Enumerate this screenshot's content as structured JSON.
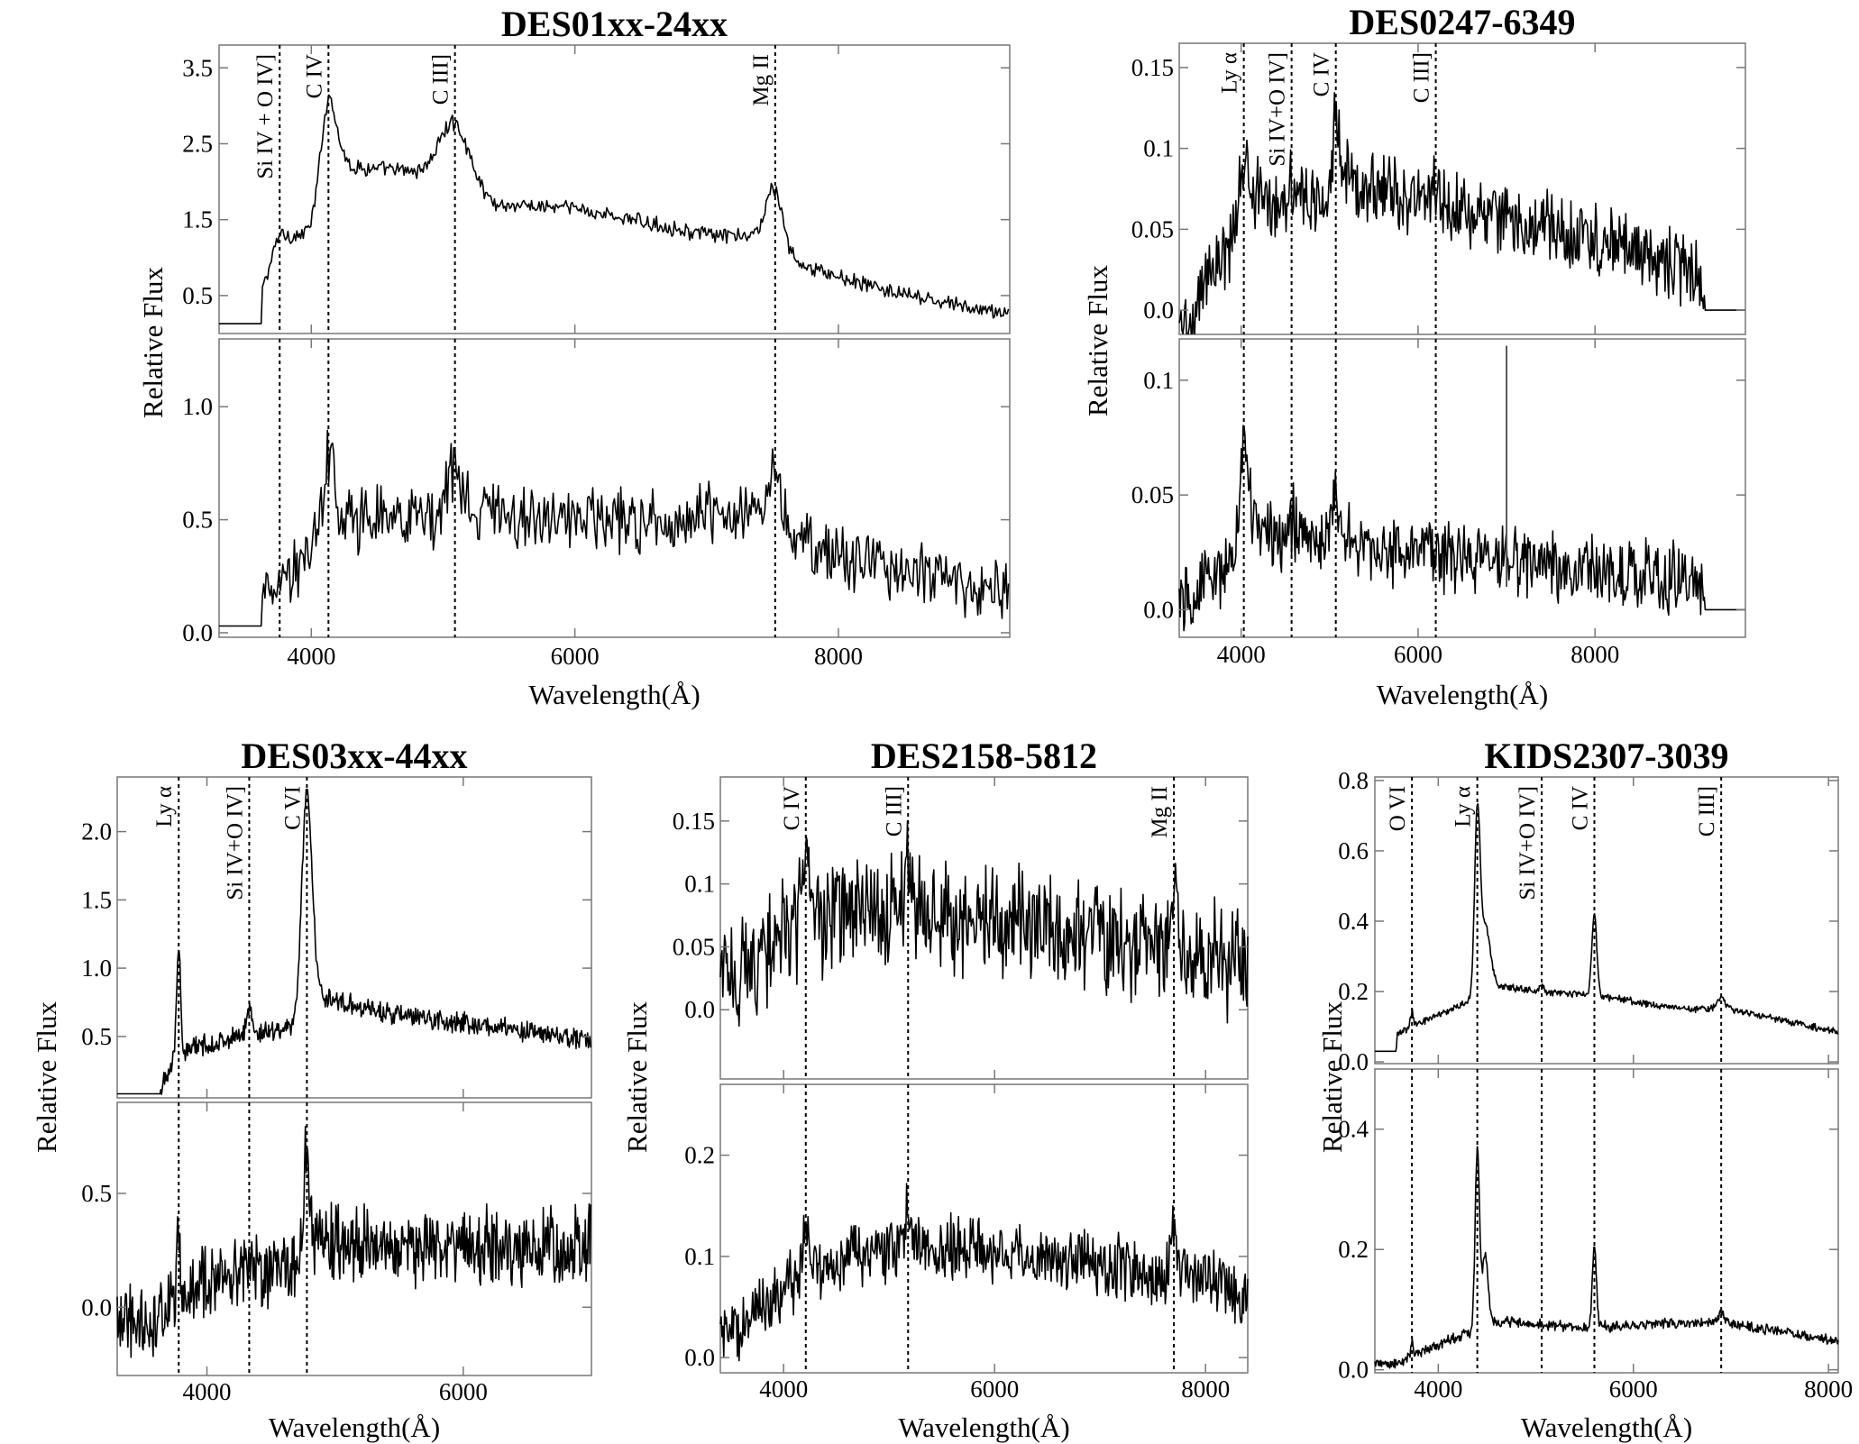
{
  "chart_data": [
    {
      "type": "line",
      "title": "DES01xx-24xx",
      "xlabel": "Wavelength",
      "xunit": "(Å)",
      "ylabel": "Relative Flux",
      "xlim": [
        3300,
        9300
      ],
      "x_ticks": [
        "4000",
        "6000",
        "8000"
      ],
      "x_tick_values": [
        4000,
        6000,
        8000
      ],
      "grid": false,
      "emission_lines": [
        {
          "name": "Si IV + O IV]",
          "x": 3760
        },
        {
          "name": "C IV",
          "x": 4130
        },
        {
          "name": "C III]",
          "x": 5090
        },
        {
          "name": "Mg II",
          "x": 7520
        }
      ],
      "panels": [
        {
          "position": "top",
          "ylim": [
            0.0,
            3.8
          ],
          "y_ticks": [
            "0.5",
            "1.5",
            "2.5",
            "3.5"
          ],
          "y_tick_values": [
            0.5,
            1.5,
            2.5,
            3.5
          ],
          "continuum": [
            [
              3300,
              0.13
            ],
            [
              3620,
              0.13
            ],
            [
              3630,
              0.6
            ],
            [
              3760,
              1.2
            ],
            [
              4000,
              1.35
            ],
            [
              4250,
              2.2
            ],
            [
              5000,
              2.1
            ],
            [
              5400,
              1.7
            ],
            [
              6000,
              1.65
            ],
            [
              7000,
              1.3
            ],
            [
              7500,
              1.25
            ],
            [
              7600,
              0.95
            ],
            [
              8500,
              0.5
            ],
            [
              9200,
              0.28
            ]
          ],
          "peaks": [
            [
              4130,
              1.3
            ],
            [
              5090,
              0.75
            ],
            [
              7520,
              0.7
            ],
            [
              3760,
              0.12
            ]
          ],
          "widths": [
            60,
            110,
            70,
            50
          ],
          "noise": 0.08,
          "flat_before": 3620
        },
        {
          "position": "bottom",
          "ylim": [
            -0.02,
            1.3
          ],
          "y_ticks": [
            "0.0",
            "0.5",
            "1.0"
          ],
          "y_tick_values": [
            0.0,
            0.5,
            1.0
          ],
          "continuum": [
            [
              3300,
              0.03
            ],
            [
              3620,
              0.03
            ],
            [
              3630,
              0.18
            ],
            [
              4000,
              0.35
            ],
            [
              4200,
              0.5
            ],
            [
              5500,
              0.52
            ],
            [
              6500,
              0.5
            ],
            [
              7500,
              0.55
            ],
            [
              7650,
              0.4
            ],
            [
              8500,
              0.28
            ],
            [
              9200,
              0.18
            ]
          ],
          "peaks": [
            [
              4130,
              0.35
            ],
            [
              5090,
              0.22
            ],
            [
              7520,
              0.15
            ]
          ],
          "widths": [
            45,
            60,
            50
          ],
          "noise": 0.11,
          "flat_before": 3620
        }
      ]
    },
    {
      "type": "line",
      "title": "DES0247-6349",
      "xlabel": "Wavelength",
      "xunit": "(Å)",
      "ylabel": "Relative Flux",
      "xlim": [
        3300,
        9700
      ],
      "x_ticks": [
        "4000",
        "6000",
        "8000"
      ],
      "x_tick_values": [
        4000,
        6000,
        8000
      ],
      "grid": false,
      "emission_lines": [
        {
          "name": "Ly α",
          "x": 4030
        },
        {
          "name": "Si IV+O IV]",
          "x": 4570
        },
        {
          "name": "C IV",
          "x": 5070
        },
        {
          "name": "C III]",
          "x": 6200
        }
      ],
      "panels": [
        {
          "position": "top",
          "ylim": [
            -0.015,
            0.165
          ],
          "y_ticks": [
            "0.0",
            "0.05",
            "0.1",
            "0.15"
          ],
          "y_tick_values": [
            0.0,
            0.05,
            0.1,
            0.15
          ],
          "continuum": [
            [
              3500,
              -0.01
            ],
            [
              3560,
              0.02
            ],
            [
              3900,
              0.04
            ],
            [
              4100,
              0.07
            ],
            [
              5000,
              0.065
            ],
            [
              5200,
              0.08
            ],
            [
              6200,
              0.065
            ],
            [
              7500,
              0.05
            ],
            [
              8500,
              0.035
            ],
            [
              9230,
              0.02
            ],
            [
              9240,
              0.0
            ],
            [
              9700,
              0.0
            ]
          ],
          "peaks": [
            [
              4030,
              0.035
            ],
            [
              4570,
              0.015
            ],
            [
              5070,
              0.045
            ],
            [
              6200,
              0.012
            ]
          ],
          "widths": [
            50,
            40,
            45,
            60
          ],
          "noise": 0.018,
          "flat_after": 9230
        },
        {
          "position": "bottom",
          "ylim": [
            -0.012,
            0.118
          ],
          "y_ticks": [
            "0.0",
            "0.05",
            "0.1"
          ],
          "y_tick_values": [
            0.0,
            0.05,
            0.1
          ],
          "continuum": [
            [
              3500,
              0.005
            ],
            [
              3600,
              0.015
            ],
            [
              3900,
              0.02
            ],
            [
              4100,
              0.035
            ],
            [
              5000,
              0.03
            ],
            [
              6000,
              0.025
            ],
            [
              7500,
              0.02
            ],
            [
              8500,
              0.015
            ],
            [
              9230,
              0.012
            ],
            [
              9240,
              0.0
            ],
            [
              9700,
              0.0
            ]
          ],
          "peaks": [
            [
              4030,
              0.045
            ],
            [
              5070,
              0.02
            ],
            [
              4570,
              0.008
            ]
          ],
          "widths": [
            50,
            45,
            40
          ],
          "noise": 0.012,
          "flat_after": 9230,
          "spike": {
            "x": 7000,
            "y": 0.115
          }
        }
      ]
    },
    {
      "type": "line",
      "title": "DES03xx-44xx",
      "xlabel": "Wavelength",
      "xunit": "(Å)",
      "ylabel": "Relative Flux",
      "xlim": [
        3300,
        7000
      ],
      "x_ticks": [
        "4000",
        "6000"
      ],
      "x_tick_values": [
        4000,
        6000
      ],
      "grid": false,
      "emission_lines": [
        {
          "name": "Ly α",
          "x": 3780
        },
        {
          "name": "Si IV+O IV]",
          "x": 4330
        },
        {
          "name": "C VI",
          "x": 4780
        }
      ],
      "panels": [
        {
          "position": "top",
          "ylim": [
            0.05,
            2.4
          ],
          "y_ticks": [
            "0.5",
            "1.0",
            "1.5",
            "2.0"
          ],
          "y_tick_values": [
            0.5,
            1.0,
            1.5,
            2.0
          ],
          "continuum": [
            [
              3300,
              0.08
            ],
            [
              3640,
              0.08
            ],
            [
              3660,
              0.2
            ],
            [
              3760,
              0.35
            ],
            [
              3900,
              0.42
            ],
            [
              4700,
              0.58
            ],
            [
              4850,
              0.8
            ],
            [
              5500,
              0.65
            ],
            [
              6000,
              0.6
            ],
            [
              6900,
              0.48
            ]
          ],
          "peaks": [
            [
              3780,
              0.8
            ],
            [
              4780,
              1.6
            ],
            [
              4330,
              0.2
            ]
          ],
          "widths": [
            15,
            40,
            25
          ],
          "noise": 0.06,
          "flat_before": 3640
        },
        {
          "position": "bottom",
          "ylim": [
            -0.3,
            0.9
          ],
          "y_ticks": [
            "0.0",
            "0.5"
          ],
          "y_tick_values": [
            0.0,
            0.5
          ],
          "continuum": [
            [
              3600,
              -0.05
            ],
            [
              3800,
              0.05
            ],
            [
              4000,
              0.1
            ],
            [
              4700,
              0.2
            ],
            [
              4800,
              0.3
            ],
            [
              5500,
              0.25
            ],
            [
              6900,
              0.28
            ]
          ],
          "peaks": [
            [
              3780,
              0.25
            ],
            [
              4780,
              0.4
            ]
          ],
          "widths": [
            15,
            25
          ],
          "noise": 0.13
        }
      ]
    },
    {
      "type": "line",
      "title": "DES2158-5812",
      "xlabel": "Wavelength",
      "xunit": "(Å)",
      "ylabel": "Relative Flux",
      "xlim": [
        3400,
        8400
      ],
      "x_ticks": [
        "4000",
        "6000",
        "8000"
      ],
      "x_tick_values": [
        4000,
        6000,
        8000
      ],
      "grid": false,
      "emission_lines": [
        {
          "name": "C IV",
          "x": 4210
        },
        {
          "name": "C III]",
          "x": 5180
        },
        {
          "name": "Mg II",
          "x": 7700
        }
      ],
      "panels": [
        {
          "position": "top",
          "ylim": [
            -0.055,
            0.185
          ],
          "y_ticks": [
            "0.0",
            "0.05",
            "0.1",
            "0.15"
          ],
          "y_tick_values": [
            0.0,
            0.05,
            0.1,
            0.15
          ],
          "continuum": [
            [
              3600,
              0.03
            ],
            [
              4000,
              0.06
            ],
            [
              4500,
              0.075
            ],
            [
              5500,
              0.075
            ],
            [
              7000,
              0.06
            ],
            [
              8000,
              0.045
            ],
            [
              8300,
              0.035
            ]
          ],
          "peaks": [
            [
              4210,
              0.065
            ],
            [
              5180,
              0.04
            ],
            [
              7700,
              0.06
            ]
          ],
          "widths": [
            30,
            50,
            25
          ],
          "noise": 0.035
        },
        {
          "position": "bottom",
          "ylim": [
            -0.015,
            0.27
          ],
          "y_ticks": [
            "0.0",
            "0.1",
            "0.2"
          ],
          "y_tick_values": [
            0.0,
            0.1,
            0.2
          ],
          "continuum": [
            [
              3600,
              0.03
            ],
            [
              4000,
              0.07
            ],
            [
              4300,
              0.09
            ],
            [
              5200,
              0.11
            ],
            [
              5600,
              0.11
            ],
            [
              7000,
              0.09
            ],
            [
              8000,
              0.08
            ],
            [
              8300,
              0.06
            ]
          ],
          "peaks": [
            [
              4210,
              0.05
            ],
            [
              5180,
              0.03
            ],
            [
              7700,
              0.05
            ]
          ],
          "widths": [
            30,
            50,
            25
          ],
          "noise": 0.025
        }
      ]
    },
    {
      "type": "line",
      "title": "KIDS2307-3039",
      "xlabel": "Wavelength",
      "xunit": "(Å)",
      "ylabel": "Relative Flux",
      "xlim": [
        3350,
        8100
      ],
      "x_ticks": [
        "4000",
        "6000",
        "8000"
      ],
      "x_tick_values": [
        4000,
        6000,
        8000
      ],
      "grid": false,
      "emission_lines": [
        {
          "name": "O VI",
          "x": 3730
        },
        {
          "name": "Ly α",
          "x": 4400
        },
        {
          "name": "Si IV+O IV]",
          "x": 5060
        },
        {
          "name": "C IV",
          "x": 5600
        },
        {
          "name": "C III]",
          "x": 6900
        }
      ],
      "panels": [
        {
          "position": "top",
          "ylim": [
            -0.005,
            0.81
          ],
          "y_ticks": [
            "0.0",
            "0.2",
            "0.4",
            "0.6",
            "0.8"
          ],
          "y_tick_values": [
            0.0,
            0.2,
            0.4,
            0.6,
            0.8
          ],
          "continuum": [
            [
              3350,
              0.03
            ],
            [
              3570,
              0.03
            ],
            [
              3580,
              0.08
            ],
            [
              3800,
              0.11
            ],
            [
              4300,
              0.17
            ],
            [
              4550,
              0.22
            ],
            [
              5000,
              0.2
            ],
            [
              5600,
              0.19
            ],
            [
              6500,
              0.15
            ],
            [
              7000,
              0.15
            ],
            [
              8000,
              0.09
            ]
          ],
          "peaks": [
            [
              4400,
              0.5
            ],
            [
              4480,
              0.18
            ],
            [
              5600,
              0.23
            ],
            [
              5060,
              0.02
            ],
            [
              6900,
              0.03
            ],
            [
              3730,
              0.04
            ]
          ],
          "widths": [
            28,
            50,
            25,
            20,
            45,
            15
          ],
          "noise": 0.008,
          "flat_before": 3570
        },
        {
          "position": "bottom",
          "ylim": [
            -0.005,
            0.5
          ],
          "y_ticks": [
            "0.0",
            "0.2",
            "0.4"
          ],
          "y_tick_values": [
            0.0,
            0.2,
            0.4
          ],
          "continuum": [
            [
              3600,
              0.01
            ],
            [
              3800,
              0.03
            ],
            [
              4300,
              0.06
            ],
            [
              4600,
              0.08
            ],
            [
              5500,
              0.07
            ],
            [
              6900,
              0.08
            ],
            [
              8000,
              0.05
            ]
          ],
          "peaks": [
            [
              4400,
              0.3
            ],
            [
              4480,
              0.12
            ],
            [
              5600,
              0.14
            ],
            [
              6900,
              0.015
            ],
            [
              3730,
              0.02
            ]
          ],
          "widths": [
            22,
            30,
            20,
            30,
            15
          ],
          "noise": 0.007
        }
      ]
    }
  ]
}
